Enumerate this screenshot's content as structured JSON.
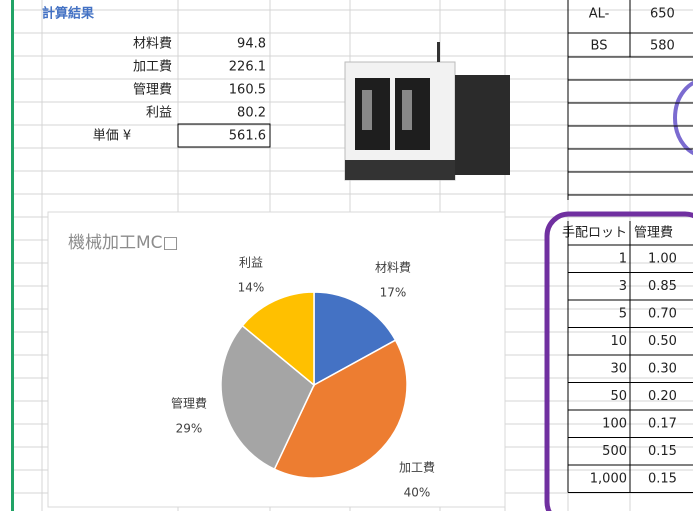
{
  "summary": {
    "title": "計算結果",
    "rows": [
      [
        "材料費",
        "94.8"
      ],
      [
        "加工費",
        "226.1"
      ],
      [
        "管理費",
        "160.5"
      ],
      [
        "利益",
        "80.2"
      ],
      [
        "単価 ¥",
        "561.6"
      ]
    ]
  },
  "codes": [
    [
      "AL-",
      "650"
    ],
    [
      "BS",
      "580"
    ]
  ],
  "lot_table": {
    "header": [
      "手配ロット",
      "管理費"
    ],
    "rows": [
      [
        "1",
        "1.00"
      ],
      [
        "3",
        "0.85"
      ],
      [
        "5",
        "0.70"
      ],
      [
        "10",
        "0.50"
      ],
      [
        "30",
        "0.30"
      ],
      [
        "50",
        "0.20"
      ],
      [
        "100",
        "0.17"
      ],
      [
        "500",
        "0.15"
      ],
      [
        "1,000",
        "0.15"
      ]
    ]
  },
  "chart_data": {
    "type": "pie",
    "title": "機械加工MC□",
    "categories": [
      "材料費",
      "加工費",
      "管理費",
      "利益"
    ],
    "values": [
      17,
      40,
      29,
      14
    ],
    "value_labels": [
      "17%",
      "40%",
      "29%",
      "14%"
    ],
    "colors": [
      "#4472c4",
      "#ed7d31",
      "#a5a5a5",
      "#ffc000"
    ]
  }
}
